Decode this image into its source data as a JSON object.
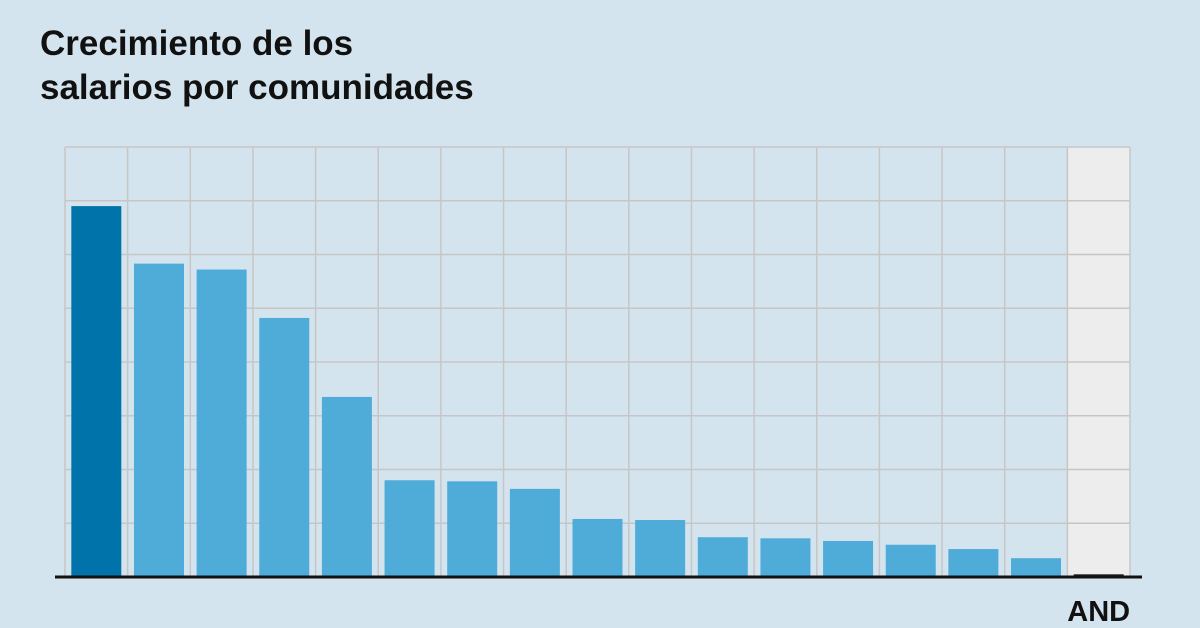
{
  "title_lines": [
    "Crecimiento de los",
    "salarios por comunidades"
  ],
  "colors": {
    "background": "#d4e4ee",
    "plot_background": "#d4e4ee",
    "highlight_background": "#ededed",
    "grid": "#c6c6c6",
    "bar": "#4fabd8",
    "bar_highlight": "#0073aa",
    "bar_selected": "#1a1a1a",
    "axis": "#111111"
  },
  "chart_data": {
    "type": "bar",
    "title": "Crecimiento de los salarios por comunidades",
    "categories": [
      "",
      "",
      "",
      "",
      "",
      "",
      "",
      "",
      "",
      "",
      "",
      "",
      "",
      "",
      "",
      "",
      "AND"
    ],
    "values": [
      6.9,
      5.83,
      5.72,
      4.82,
      3.35,
      1.8,
      1.78,
      1.64,
      1.08,
      1.06,
      0.74,
      0.72,
      0.67,
      0.6,
      0.52,
      0.35,
      0.05
    ],
    "highlighted_index": 0,
    "selected_index": 16,
    "ylim": [
      0,
      8
    ],
    "grid": true,
    "xlabel": "",
    "ylabel": ""
  }
}
